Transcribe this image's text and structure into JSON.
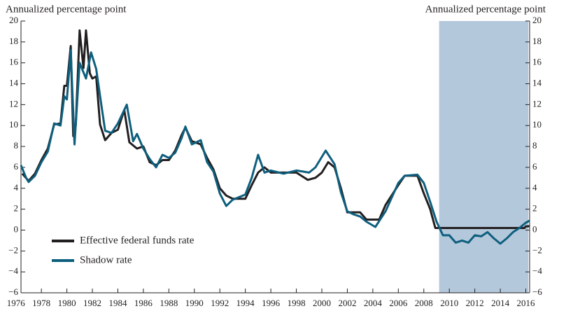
{
  "chart_data": {
    "type": "line",
    "ylabel": "Annualized percentage point",
    "y2label": "Annualized percentage point",
    "xlim": [
      1976.4,
      2016.3
    ],
    "xticks": [
      1976,
      1978,
      1980,
      1982,
      1984,
      1986,
      1988,
      1990,
      1992,
      1994,
      1996,
      1998,
      2000,
      2002,
      2004,
      2006,
      2008,
      2010,
      2012,
      2014,
      2016
    ],
    "ylim": [
      -6,
      20
    ],
    "yticks": [
      {
        "value": -6,
        "label": "−6"
      },
      {
        "value": -4,
        "label": "−4"
      },
      {
        "value": -2,
        "label": "−2"
      },
      0,
      2,
      4,
      6,
      8,
      10,
      12,
      14,
      16,
      18,
      20
    ],
    "y2lim": [
      -6,
      20
    ],
    "y2ticks": [
      {
        "value": -6,
        "label": "−6"
      },
      {
        "value": -4,
        "label": "−4"
      },
      {
        "value": -2,
        "label": "−2"
      },
      0,
      2,
      4,
      6,
      8,
      10,
      12,
      14,
      16,
      18,
      20
    ],
    "shaded_region": [
      2009.2,
      2016.2
    ],
    "shade_color": "#b4c8dc",
    "legend": "lower left",
    "series": [
      {
        "name": "Effective federal funds rate",
        "color": "#231f20",
        "x": [
          1976.5,
          1977.0,
          1977.5,
          1978.0,
          1978.5,
          1979.0,
          1979.5,
          1979.8,
          1980.0,
          1980.3,
          1980.5,
          1980.7,
          1981.0,
          1981.3,
          1981.5,
          1981.8,
          1982.0,
          1982.3,
          1982.6,
          1983.0,
          1983.5,
          1984.0,
          1984.5,
          1984.9,
          1985.5,
          1986.0,
          1986.5,
          1987.0,
          1987.5,
          1988.0,
          1988.5,
          1989.0,
          1989.3,
          1989.8,
          1990.5,
          1991.0,
          1991.5,
          1992.0,
          1992.5,
          1993.0,
          1994.0,
          1994.5,
          1995.0,
          1995.5,
          1996.0,
          1997.0,
          1998.0,
          1998.9,
          1999.5,
          2000.0,
          2000.5,
          2001.0,
          2001.5,
          2002.0,
          2003.0,
          2003.5,
          2004.5,
          2005.0,
          2006.0,
          2006.5,
          2007.5,
          2008.0,
          2008.5,
          2008.9,
          2015.9,
          2016.0,
          2016.3
        ],
        "values": [
          5.4,
          4.7,
          5.4,
          6.7,
          7.8,
          10.1,
          10.2,
          13.8,
          13.8,
          17.6,
          9.0,
          10.0,
          19.1,
          15.5,
          19.1,
          15.0,
          14.5,
          14.7,
          10.1,
          8.6,
          9.3,
          9.6,
          11.5,
          8.4,
          7.8,
          8.0,
          6.5,
          6.2,
          6.7,
          6.7,
          7.6,
          9.1,
          9.8,
          8.5,
          8.2,
          6.9,
          5.8,
          4.0,
          3.3,
          3.0,
          3.0,
          4.3,
          5.5,
          6.0,
          5.5,
          5.5,
          5.5,
          4.8,
          5.0,
          5.5,
          6.5,
          6.0,
          4.0,
          1.7,
          1.7,
          1.0,
          1.0,
          2.4,
          4.3,
          5.2,
          5.2,
          3.5,
          2.0,
          0.2,
          0.2,
          0.35,
          0.37
        ]
      },
      {
        "name": "Shadow rate",
        "color": "#0e5f7e",
        "x": [
          1976.4,
          1976.8,
          1977.0,
          1977.5,
          1978.0,
          1978.5,
          1979.0,
          1979.5,
          1979.8,
          1980.0,
          1980.3,
          1980.6,
          1981.0,
          1981.5,
          1981.9,
          1982.3,
          1982.7,
          1983.0,
          1983.5,
          1984.0,
          1984.7,
          1985.2,
          1985.5,
          1986.0,
          1986.5,
          1987.0,
          1987.5,
          1988.0,
          1988.5,
          1989.0,
          1989.3,
          1989.8,
          1990.5,
          1991.0,
          1991.5,
          1992.0,
          1992.5,
          1993.0,
          1994.0,
          1994.5,
          1995.0,
          1995.5,
          1996.0,
          1997.0,
          1998.0,
          1999.0,
          1999.5,
          2000.3,
          2001.0,
          2001.5,
          2002.0,
          2002.5,
          2003.0,
          2003.5,
          2004.2,
          2005.0,
          2006.0,
          2006.5,
          2007.5,
          2008.0,
          2008.5,
          2009.0,
          2009.5,
          2010.0,
          2010.5,
          2011.0,
          2011.5,
          2012.0,
          2012.5,
          2013.0,
          2013.5,
          2014.0,
          2014.5,
          2015.0,
          2015.5,
          2016.0,
          2016.3
        ],
        "values": [
          6.2,
          5.0,
          4.6,
          5.2,
          6.5,
          7.5,
          10.2,
          10.0,
          12.8,
          12.5,
          17.2,
          8.2,
          16.0,
          14.5,
          17.0,
          15.4,
          12.0,
          9.5,
          9.3,
          10.2,
          12.0,
          8.5,
          9.2,
          7.8,
          6.8,
          6.0,
          7.2,
          6.9,
          7.4,
          8.8,
          9.9,
          8.2,
          8.6,
          6.5,
          5.6,
          3.5,
          2.3,
          2.9,
          3.4,
          5.0,
          7.2,
          5.5,
          5.7,
          5.4,
          5.7,
          5.5,
          6.0,
          7.6,
          6.3,
          3.6,
          1.8,
          1.5,
          1.3,
          0.8,
          0.3,
          1.8,
          4.5,
          5.2,
          5.3,
          4.5,
          2.7,
          0.8,
          -0.5,
          -0.5,
          -1.2,
          -1.0,
          -1.2,
          -0.5,
          -0.6,
          -0.2,
          -0.8,
          -1.3,
          -0.8,
          -0.2,
          0.2,
          0.7,
          0.9
        ]
      }
    ]
  }
}
